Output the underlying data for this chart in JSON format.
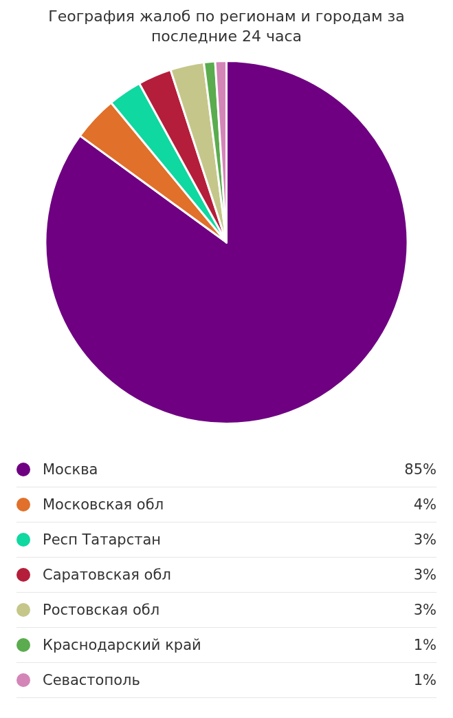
{
  "chart_data": {
    "type": "pie",
    "title": "География жалоб по регионам и городам за последние 24 часа",
    "categories": [
      "Москва",
      "Московская обл",
      "Респ Татарстан",
      "Саратовская обл",
      "Ростовская обл",
      "Краснодарский край",
      "Севастополь"
    ],
    "values": [
      85,
      4,
      3,
      3,
      3,
      1,
      1
    ],
    "value_labels": [
      "85%",
      "4%",
      "3%",
      "3%",
      "3%",
      "1%",
      "1%"
    ],
    "colors": [
      "#6e0081",
      "#e0702a",
      "#0fd8a0",
      "#b41e3a",
      "#c5c78a",
      "#5aac4e",
      "#d485b8"
    ],
    "legend": "bottom"
  }
}
